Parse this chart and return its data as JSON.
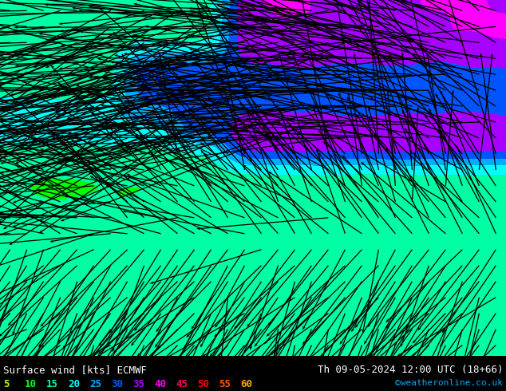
{
  "title_left": "Surface wind [kts] ECMWF",
  "title_right": "Th 09-05-2024 12:00 UTC (18+66)",
  "credit": "©weatheronline.co.uk",
  "legend_values": [
    "5",
    "10",
    "15",
    "20",
    "25",
    "30",
    "35",
    "40",
    "45",
    "50",
    "55",
    "60"
  ],
  "legend_colors": [
    "#aaff00",
    "#00ff00",
    "#00ffaa",
    "#00ffff",
    "#00aaff",
    "#0055ff",
    "#aa00ff",
    "#ff00ff",
    "#ff0055",
    "#ff0000",
    "#ff5500",
    "#ffaa00"
  ],
  "colormap_levels": [
    0,
    5,
    10,
    15,
    20,
    25,
    30,
    35,
    40,
    45,
    50,
    55,
    60
  ],
  "colormap_colors": [
    "#ffff00",
    "#aaff00",
    "#00ff00",
    "#00ffaa",
    "#00ffff",
    "#00aaff",
    "#0055ff",
    "#aa00ff",
    "#ff00ff",
    "#ff0055",
    "#ff0000",
    "#ff5500"
  ],
  "background_color": "#000000",
  "text_color": "#000000",
  "figsize": [
    6.34,
    4.9
  ],
  "dpi": 100
}
